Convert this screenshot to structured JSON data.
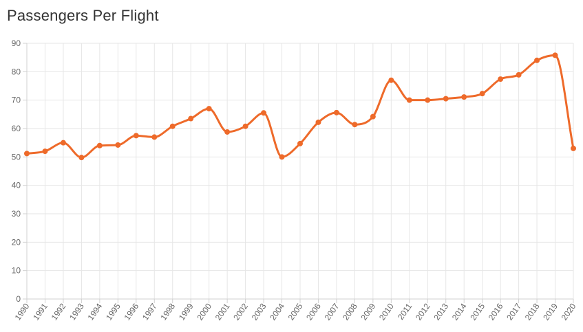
{
  "chart_data": {
    "type": "line",
    "title": "Passengers Per Flight",
    "xlabel": "",
    "ylabel": "",
    "categories": [
      "1990",
      "1991",
      "1992",
      "1993",
      "1994",
      "1995",
      "1996",
      "1997",
      "1998",
      "1999",
      "2000",
      "2001",
      "2002",
      "2003",
      "2004",
      "2005",
      "2006",
      "2007",
      "2008",
      "2009",
      "2010",
      "2011",
      "2012",
      "2013",
      "2014",
      "2015",
      "2016",
      "2017",
      "2018",
      "2019",
      "2020"
    ],
    "series": [
      {
        "values": [
          51.2,
          52.0,
          55.0,
          49.8,
          54.0,
          54.2,
          57.5,
          57.0,
          60.8,
          63.5,
          67.0,
          58.8,
          60.8,
          65.5,
          50.0,
          54.7,
          62.2,
          65.6,
          61.4,
          64.2,
          77.0,
          70.0,
          70.0,
          70.5,
          71.1,
          72.3,
          77.4,
          78.9,
          84.0,
          85.8,
          53.0
        ],
        "color": "#ee6a2a"
      }
    ],
    "ylim": [
      0,
      90
    ],
    "yticks": [
      "0",
      "10",
      "20",
      "30",
      "40",
      "50",
      "60",
      "70",
      "80",
      "90"
    ],
    "grid": true,
    "legend": "none"
  }
}
